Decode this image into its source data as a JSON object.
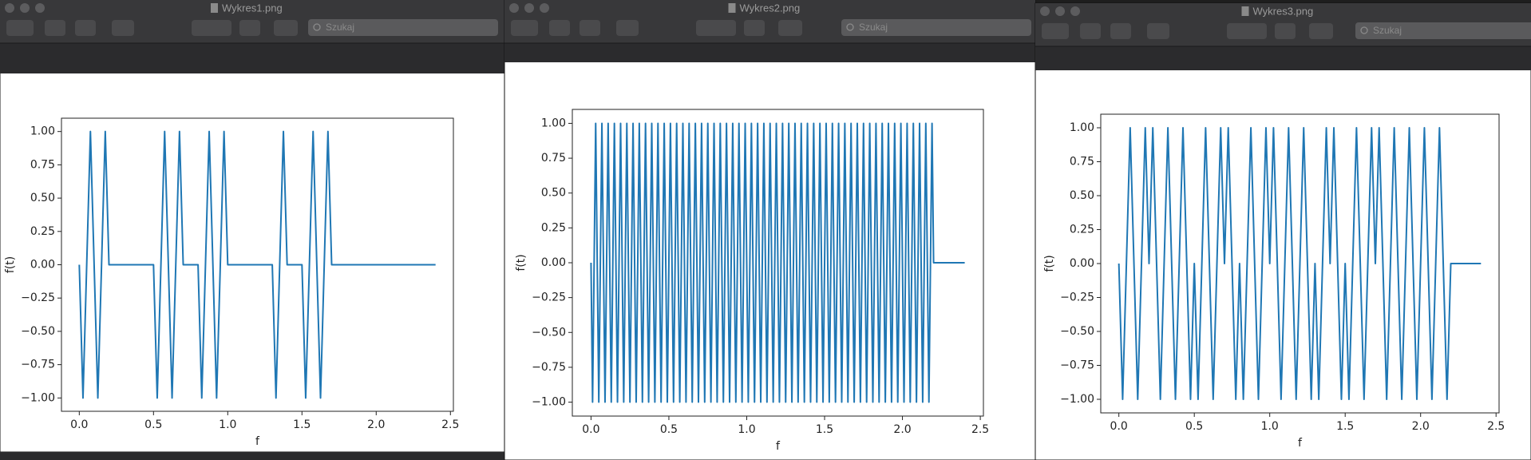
{
  "windows": [
    {
      "title": "Wykres1.png",
      "search_placeholder": "Szukaj"
    },
    {
      "title": "Wykres2.png",
      "search_placeholder": "Szukaj"
    },
    {
      "title": "Wykres3.png",
      "search_placeholder": "Szukaj"
    }
  ],
  "chart_data": [
    {
      "type": "line",
      "x_label": "f",
      "y_label": "f(t)",
      "color": "#1f77b4",
      "xlim": [
        -0.12,
        2.52
      ],
      "ylim": [
        -1.1,
        1.1
      ],
      "xticks": [
        {
          "value": 0,
          "label": "0.0"
        },
        0.5,
        {
          "value": 1,
          "label": "1.0"
        },
        1.5,
        {
          "value": 2,
          "label": "2.0"
        },
        2.5
      ],
      "yticks": [
        {
          "value": -1,
          "label": "−1.00"
        },
        {
          "value": -0.75,
          "label": "−0.75"
        },
        {
          "value": -0.5,
          "label": "−0.50"
        },
        {
          "value": -0.25,
          "label": "−0.25"
        },
        {
          "value": 0,
          "label": "0.00"
        },
        0.25,
        {
          "value": 0.5,
          "label": "0.50"
        },
        0.75,
        {
          "value": 1,
          "label": "1.00"
        }
      ],
      "x": [
        0,
        0.025,
        0.05,
        0.075,
        0.1,
        0.125,
        0.15,
        0.175,
        0.2,
        0.225,
        0.25,
        0.275,
        0.3,
        0.325,
        0.35,
        0.375,
        0.4,
        0.425,
        0.45,
        0.475,
        0.5,
        0.525,
        0.55,
        0.575,
        0.6,
        0.625,
        0.65,
        0.675,
        0.7,
        0.725,
        0.75,
        0.775,
        0.8,
        0.825,
        0.85,
        0.875,
        0.9,
        0.925,
        0.95,
        0.975,
        1,
        1.025,
        1.05,
        1.075,
        1.1,
        1.125,
        1.15,
        1.175,
        1.2,
        1.225,
        1.25,
        1.275,
        1.3,
        1.325,
        1.35,
        1.375,
        1.4,
        1.425,
        1.45,
        1.475,
        1.5,
        1.525,
        1.55,
        1.575,
        1.6,
        1.625,
        1.65,
        1.675,
        1.7,
        1.725,
        1.75,
        1.775,
        1.8,
        1.825,
        1.85,
        1.875,
        1.9,
        1.925,
        1.95,
        1.975,
        2,
        2.025,
        2.05,
        2.075,
        2.1,
        2.125,
        2.15,
        2.175,
        2.2,
        2.225,
        2.25,
        2.275,
        2.3,
        2.325,
        2.35,
        2.375,
        2.4
      ],
      "values": [
        0,
        -1,
        0,
        1,
        0,
        -1,
        0,
        1,
        0,
        0,
        0,
        0,
        0,
        0,
        0,
        0,
        0,
        0,
        0,
        0,
        0,
        -1,
        0,
        1,
        0,
        -1,
        0,
        1,
        0,
        0,
        0,
        0,
        0,
        -1,
        0,
        1,
        0,
        -1,
        0,
        1,
        0,
        0,
        0,
        0,
        0,
        0,
        0,
        0,
        0,
        0,
        0,
        0,
        0,
        -1,
        0,
        1,
        0,
        0,
        0,
        0,
        0,
        -1,
        0,
        1,
        0,
        -1,
        0,
        1,
        0,
        0,
        0,
        0,
        0,
        0,
        0,
        0,
        0,
        0,
        0,
        0,
        0,
        0,
        0,
        0,
        0,
        0,
        0,
        0,
        0,
        0,
        0,
        0,
        0,
        0,
        0,
        0,
        0
      ]
    },
    {
      "type": "line",
      "x_label": "f",
      "y_label": "f(t)",
      "color": "#1f77b4",
      "xlim": [
        -0.12,
        2.52
      ],
      "ylim": [
        -1.1,
        1.1
      ],
      "xticks": [
        {
          "value": 0,
          "label": "0.0"
        },
        0.5,
        {
          "value": 1,
          "label": "1.0"
        },
        1.5,
        {
          "value": 2,
          "label": "2.0"
        },
        2.5
      ],
      "yticks": [
        {
          "value": -1,
          "label": "−1.00"
        },
        {
          "value": -0.75,
          "label": "−0.75"
        },
        {
          "value": -0.5,
          "label": "−0.50"
        },
        {
          "value": -0.25,
          "label": "−0.25"
        },
        {
          "value": 0,
          "label": "0.00"
        },
        0.25,
        {
          "value": 0.5,
          "label": "0.50"
        },
        0.75,
        {
          "value": 1,
          "label": "1.00"
        }
      ],
      "x": [
        0,
        0.01,
        0.03,
        0.05,
        0.07,
        0.09,
        0.11,
        0.13,
        0.15,
        0.17,
        0.19,
        0.21,
        0.23,
        0.25,
        0.27,
        0.29,
        0.31,
        0.33,
        0.35,
        0.37,
        0.39,
        0.41,
        0.43,
        0.45,
        0.47,
        0.49,
        0.51,
        0.53,
        0.55,
        0.57,
        0.59,
        0.61,
        0.63,
        0.65,
        0.67,
        0.69,
        0.71,
        0.73,
        0.75,
        0.77,
        0.79,
        0.81,
        0.83,
        0.85,
        0.87,
        0.89,
        0.91,
        0.93,
        0.95,
        0.97,
        0.99,
        1.01,
        1.03,
        1.05,
        1.07,
        1.09,
        1.11,
        1.13,
        1.15,
        1.17,
        1.19,
        1.21,
        1.23,
        1.25,
        1.27,
        1.29,
        1.31,
        1.33,
        1.35,
        1.37,
        1.39,
        1.41,
        1.43,
        1.45,
        1.47,
        1.49,
        1.51,
        1.53,
        1.55,
        1.57,
        1.59,
        1.61,
        1.63,
        1.65,
        1.67,
        1.69,
        1.71,
        1.73,
        1.75,
        1.77,
        1.79,
        1.81,
        1.83,
        1.85,
        1.87,
        1.89,
        1.91,
        1.93,
        1.95,
        1.97,
        1.99,
        2.01,
        2.03,
        2.05,
        2.07,
        2.09,
        2.11,
        2.13,
        2.15,
        2.17,
        2.19,
        2.2,
        2.4
      ],
      "values": [
        0,
        -1,
        1,
        -1,
        1,
        -1,
        1,
        -1,
        1,
        -1,
        1,
        -1,
        1,
        -1,
        1,
        -1,
        1,
        -1,
        1,
        -1,
        1,
        -1,
        1,
        -1,
        1,
        -1,
        1,
        -1,
        1,
        -1,
        1,
        -1,
        1,
        -1,
        1,
        -1,
        1,
        -1,
        1,
        -1,
        1,
        -1,
        1,
        -1,
        1,
        -1,
        1,
        -1,
        1,
        -1,
        1,
        -1,
        1,
        -1,
        1,
        -1,
        1,
        -1,
        1,
        -1,
        1,
        -1,
        1,
        -1,
        1,
        -1,
        1,
        -1,
        1,
        -1,
        1,
        -1,
        1,
        -1,
        1,
        -1,
        1,
        -1,
        1,
        -1,
        1,
        -1,
        1,
        -1,
        1,
        -1,
        1,
        -1,
        1,
        -1,
        1,
        -1,
        1,
        -1,
        1,
        -1,
        1,
        -1,
        1,
        -1,
        1,
        -1,
        1,
        -1,
        1,
        -1,
        1,
        -1,
        1,
        -1,
        1,
        0,
        0
      ]
    },
    {
      "type": "line",
      "x_label": "f",
      "y_label": "f(t)",
      "color": "#1f77b4",
      "xlim": [
        -0.12,
        2.52
      ],
      "ylim": [
        -1.1,
        1.1
      ],
      "xticks": [
        {
          "value": 0,
          "label": "0.0"
        },
        0.5,
        {
          "value": 1,
          "label": "1.0"
        },
        1.5,
        {
          "value": 2,
          "label": "2.0"
        },
        2.5
      ],
      "yticks": [
        {
          "value": -1,
          "label": "−1.00"
        },
        {
          "value": -0.75,
          "label": "−0.75"
        },
        {
          "value": -0.5,
          "label": "−0.50"
        },
        {
          "value": -0.25,
          "label": "−0.25"
        },
        {
          "value": 0,
          "label": "0.00"
        },
        0.25,
        {
          "value": 0.5,
          "label": "0.50"
        },
        0.75,
        {
          "value": 1,
          "label": "1.00"
        }
      ],
      "x": [
        0,
        0.025,
        0.05,
        0.075,
        0.1,
        0.125,
        0.15,
        0.175,
        0.2,
        0.225,
        0.25,
        0.275,
        0.3,
        0.325,
        0.35,
        0.375,
        0.4,
        0.425,
        0.45,
        0.475,
        0.5,
        0.525,
        0.55,
        0.575,
        0.6,
        0.625,
        0.65,
        0.675,
        0.7,
        0.725,
        0.75,
        0.775,
        0.8,
        0.825,
        0.85,
        0.875,
        0.9,
        0.925,
        0.95,
        0.975,
        1,
        1.025,
        1.05,
        1.075,
        1.1,
        1.125,
        1.15,
        1.175,
        1.2,
        1.225,
        1.25,
        1.275,
        1.3,
        1.325,
        1.35,
        1.375,
        1.4,
        1.425,
        1.45,
        1.475,
        1.5,
        1.525,
        1.55,
        1.575,
        1.6,
        1.625,
        1.65,
        1.675,
        1.7,
        1.725,
        1.75,
        1.775,
        1.8,
        1.825,
        1.85,
        1.875,
        1.9,
        1.925,
        1.95,
        1.975,
        2,
        2.025,
        2.05,
        2.075,
        2.1,
        2.125,
        2.15,
        2.175,
        2.2,
        2.225,
        2.25,
        2.275,
        2.3,
        2.325,
        2.35,
        2.375,
        2.4
      ],
      "values": [
        0,
        -1,
        0,
        1,
        0,
        -1,
        0,
        1,
        0,
        1,
        0,
        -1,
        0,
        1,
        0,
        -1,
        0,
        1,
        0,
        -1,
        0,
        -1,
        0,
        1,
        0,
        -1,
        0,
        1,
        0,
        1,
        0,
        -1,
        0,
        -1,
        0,
        1,
        0,
        -1,
        0,
        1,
        0,
        1,
        0,
        -1,
        0,
        1,
        0,
        -1,
        0,
        1,
        0,
        -1,
        0,
        -1,
        0,
        1,
        0,
        1,
        0,
        -1,
        0,
        -1,
        0,
        1,
        0,
        -1,
        0,
        1,
        0,
        1,
        0,
        -1,
        0,
        1,
        0,
        -1,
        0,
        1,
        0,
        -1,
        0,
        1,
        0,
        -1,
        0,
        1,
        0,
        -1,
        0,
        0,
        0,
        0,
        0,
        0,
        0,
        0,
        0
      ]
    }
  ]
}
